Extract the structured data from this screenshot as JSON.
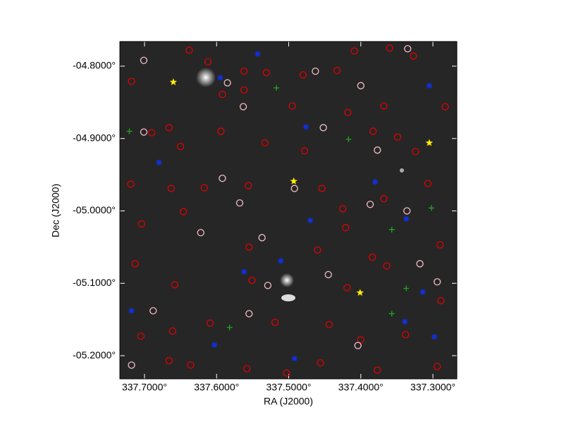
{
  "chart_data": {
    "type": "scatter",
    "xlabel": "RA (J2000)",
    "ylabel": "Dec (J2000)",
    "xlim": [
      337.7342,
      337.2668
    ],
    "ylim": [
      -5.232,
      -4.766
    ],
    "xticks": [
      {
        "value": 337.7,
        "label": "337.7000°"
      },
      {
        "value": 337.6,
        "label": "337.6000°"
      },
      {
        "value": 337.5,
        "label": "337.5000°"
      },
      {
        "value": 337.4,
        "label": "337.4000°"
      },
      {
        "value": 337.3,
        "label": "337.3000°"
      }
    ],
    "yticks": [
      {
        "value": -4.8,
        "label": "-04.8000°"
      },
      {
        "value": -4.9,
        "label": "-04.9000°"
      },
      {
        "value": -5.0,
        "label": "-05.0000°"
      },
      {
        "value": -5.1,
        "label": "-05.1000°"
      },
      {
        "value": -5.2,
        "label": "-05.2000°"
      }
    ],
    "series": [
      {
        "color": "#e00000",
        "marker": "circle",
        "x": [
          337.638,
          337.612,
          337.562,
          337.531,
          337.48,
          337.433,
          337.409,
          337.36,
          337.327,
          337.718,
          337.592,
          337.562,
          337.495,
          337.418,
          337.368,
          337.283,
          337.69,
          337.666,
          337.594,
          337.533,
          337.478,
          337.383,
          337.349,
          337.324,
          337.65,
          337.719,
          337.663,
          337.617,
          337.556,
          337.454,
          337.425,
          337.368,
          337.307,
          337.704,
          337.646,
          337.555,
          337.46,
          337.421,
          337.384,
          337.29,
          337.713,
          337.658,
          337.551,
          337.419,
          337.364,
          337.289,
          337.705,
          337.661,
          337.609,
          337.519,
          337.444,
          337.4,
          337.338,
          337.636,
          337.558,
          337.503,
          337.456,
          337.377,
          337.294,
          337.666
        ],
        "y": [
          -4.778,
          -4.794,
          -4.807,
          -4.809,
          -4.812,
          -4.806,
          -4.779,
          -4.775,
          -4.786,
          -4.821,
          -4.839,
          -4.833,
          -4.855,
          -4.864,
          -4.855,
          -4.856,
          -4.892,
          -4.885,
          -4.89,
          -4.906,
          -4.917,
          -4.89,
          -4.898,
          -4.918,
          -4.911,
          -4.963,
          -4.969,
          -4.968,
          -4.965,
          -4.969,
          -4.997,
          -4.983,
          -4.962,
          -5.018,
          -5.001,
          -5.05,
          -5.054,
          -5.023,
          -5.064,
          -5.047,
          -5.073,
          -5.102,
          -5.096,
          -5.106,
          -5.076,
          -5.124,
          -5.173,
          -5.166,
          -5.155,
          -5.154,
          -5.157,
          -5.178,
          -5.171,
          -5.213,
          -5.218,
          -5.224,
          -5.21,
          -5.22,
          -5.215,
          -5.207
        ]
      },
      {
        "color": "#f4c0c8",
        "marker": "circle",
        "x": [
          337.701,
          337.585,
          337.463,
          337.4,
          337.335,
          337.563,
          337.701,
          337.452,
          337.377,
          337.592,
          337.492,
          337.336,
          337.568,
          337.622,
          337.537,
          337.445,
          337.318,
          337.688,
          337.555,
          337.404,
          337.718,
          337.294,
          337.529,
          337.387
        ],
        "y": [
          -4.792,
          -4.823,
          -4.807,
          -4.827,
          -4.776,
          -4.856,
          -4.891,
          -4.885,
          -4.916,
          -4.955,
          -4.969,
          -5.0,
          -4.989,
          -5.03,
          -5.037,
          -5.088,
          -5.073,
          -5.138,
          -5.142,
          -5.186,
          -5.213,
          -5.098,
          -5.103,
          -4.991
        ]
      },
      {
        "color": "#1030e0",
        "marker": "cross",
        "x": [
          337.543,
          337.595,
          337.305,
          337.68,
          337.476,
          337.38,
          337.337,
          337.47,
          337.562,
          337.314,
          337.339,
          337.603,
          337.492,
          337.718,
          337.298,
          337.511
        ],
        "y": [
          -4.783,
          -4.816,
          -4.827,
          -4.933,
          -4.884,
          -4.96,
          -5.011,
          -5.013,
          -5.084,
          -5.112,
          -5.153,
          -5.185,
          -5.204,
          -5.138,
          -5.174,
          -5.069
        ]
      },
      {
        "color": "#20a020",
        "marker": "plus",
        "x": [
          337.517,
          337.721,
          337.417,
          337.357,
          337.337,
          337.357,
          337.582,
          337.302
        ],
        "y": [
          -4.83,
          -4.89,
          -4.901,
          -5.026,
          -5.107,
          -5.142,
          -5.161,
          -4.996
        ]
      },
      {
        "color": "#ffee00",
        "marker": "star",
        "x": [
          337.66,
          337.305,
          337.493,
          337.401
        ],
        "y": [
          -4.822,
          -4.906,
          -4.959,
          -5.113
        ]
      }
    ]
  }
}
